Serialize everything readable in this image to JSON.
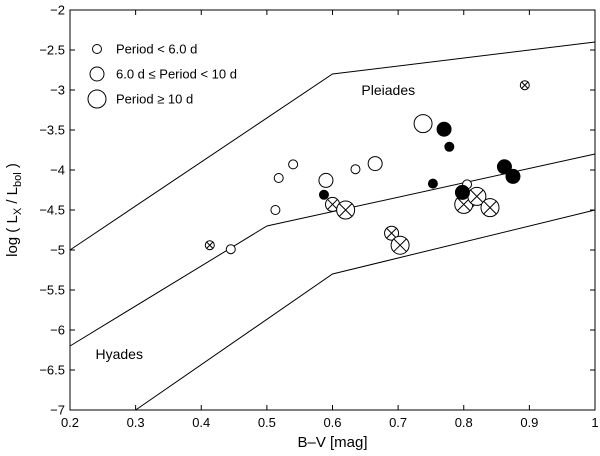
{
  "chart_data": {
    "type": "scatter",
    "xlabel": "B–V [mag]",
    "ylabel": "log ( L",
    "ylabel_sub1": "X",
    "ylabel_mid": " / L",
    "ylabel_sub2": "bol",
    "ylabel_end": " )",
    "xlim": [
      0.2,
      1.0
    ],
    "ylim": [
      -7,
      -2
    ],
    "xticks": [
      {
        "value": 0.2,
        "label": "0.2"
      },
      {
        "value": 0.3,
        "label": "0.3"
      },
      {
        "value": 0.4,
        "label": "0.4"
      },
      {
        "value": 0.5,
        "label": "0.5"
      },
      {
        "value": 0.6,
        "label": "0.6"
      },
      {
        "value": 0.7,
        "label": "0.7"
      },
      {
        "value": 0.8,
        "label": "0.8"
      },
      {
        "value": 0.9,
        "label": "0.9"
      },
      {
        "value": 1.0,
        "label": "1"
      }
    ],
    "yticks": [
      {
        "value": -2,
        "label": "−2"
      },
      {
        "value": -2.5,
        "label": "−2.5"
      },
      {
        "value": -3,
        "label": "−3"
      },
      {
        "value": -3.5,
        "label": "−3.5"
      },
      {
        "value": -4,
        "label": "−4"
      },
      {
        "value": -4.5,
        "label": "−4.5"
      },
      {
        "value": -5,
        "label": "−5"
      },
      {
        "value": -5.5,
        "label": "−5.5"
      },
      {
        "value": -6,
        "label": "−6"
      },
      {
        "value": -6.5,
        "label": "−6.5"
      },
      {
        "value": -7,
        "label": "−7"
      }
    ],
    "grid": false,
    "legend_position": "top-left",
    "legend": [
      {
        "label": "Period < 6.0 d",
        "size": "small"
      },
      {
        "label": "6.0 d ≤ Period < 10 d",
        "size": "medium"
      },
      {
        "label": "Period ≥ 10 d",
        "size": "large"
      }
    ],
    "region_labels": [
      {
        "text": "Pleiades",
        "x": 0.685,
        "y": -3.0
      },
      {
        "text": "Hyades",
        "x": 0.275,
        "y": -6.3
      }
    ],
    "boundary_lines": [
      {
        "name": "upper",
        "points": [
          [
            0.2,
            -5.0
          ],
          [
            0.6,
            -2.8
          ],
          [
            1.0,
            -2.4
          ]
        ]
      },
      {
        "name": "middle",
        "points": [
          [
            0.2,
            -6.2
          ],
          [
            0.5,
            -4.7
          ],
          [
            1.0,
            -3.8
          ]
        ]
      },
      {
        "name": "lower",
        "points": [
          [
            0.3,
            -7.0
          ],
          [
            0.6,
            -5.3
          ],
          [
            1.0,
            -4.5
          ]
        ]
      }
    ],
    "points": [
      {
        "x": 0.445,
        "y": -4.99,
        "size": "small",
        "marker": "open"
      },
      {
        "x": 0.513,
        "y": -4.5,
        "size": "small",
        "marker": "open"
      },
      {
        "x": 0.518,
        "y": -4.1,
        "size": "small",
        "marker": "open"
      },
      {
        "x": 0.54,
        "y": -3.93,
        "size": "small",
        "marker": "open"
      },
      {
        "x": 0.635,
        "y": -3.99,
        "size": "small",
        "marker": "open"
      },
      {
        "x": 0.805,
        "y": -4.18,
        "size": "small",
        "marker": "open"
      },
      {
        "x": 0.81,
        "y": -4.41,
        "size": "small",
        "marker": "open"
      },
      {
        "x": 0.59,
        "y": -4.13,
        "size": "medium",
        "marker": "open"
      },
      {
        "x": 0.665,
        "y": -3.92,
        "size": "medium",
        "marker": "open"
      },
      {
        "x": 0.738,
        "y": -3.42,
        "size": "large",
        "marker": "open"
      },
      {
        "x": 0.413,
        "y": -4.94,
        "size": "small",
        "marker": "crossed"
      },
      {
        "x": 0.893,
        "y": -2.94,
        "size": "small",
        "marker": "crossed"
      },
      {
        "x": 0.6,
        "y": -4.43,
        "size": "medium",
        "marker": "crossed"
      },
      {
        "x": 0.69,
        "y": -4.79,
        "size": "medium",
        "marker": "crossed"
      },
      {
        "x": 0.62,
        "y": -4.5,
        "size": "large",
        "marker": "crossed"
      },
      {
        "x": 0.703,
        "y": -4.94,
        "size": "large",
        "marker": "crossed"
      },
      {
        "x": 0.8,
        "y": -4.43,
        "size": "large",
        "marker": "crossed"
      },
      {
        "x": 0.82,
        "y": -4.33,
        "size": "large",
        "marker": "crossed"
      },
      {
        "x": 0.84,
        "y": -4.47,
        "size": "large",
        "marker": "crossed"
      },
      {
        "x": 0.587,
        "y": -4.31,
        "size": "small",
        "marker": "filled"
      },
      {
        "x": 0.753,
        "y": -4.17,
        "size": "small",
        "marker": "filled"
      },
      {
        "x": 0.778,
        "y": -3.71,
        "size": "small",
        "marker": "filled"
      },
      {
        "x": 0.77,
        "y": -3.49,
        "size": "medium",
        "marker": "filled"
      },
      {
        "x": 0.798,
        "y": -4.28,
        "size": "medium",
        "marker": "filled"
      },
      {
        "x": 0.862,
        "y": -3.96,
        "size": "medium",
        "marker": "filled"
      },
      {
        "x": 0.875,
        "y": -4.08,
        "size": "medium",
        "marker": "filled"
      }
    ]
  }
}
